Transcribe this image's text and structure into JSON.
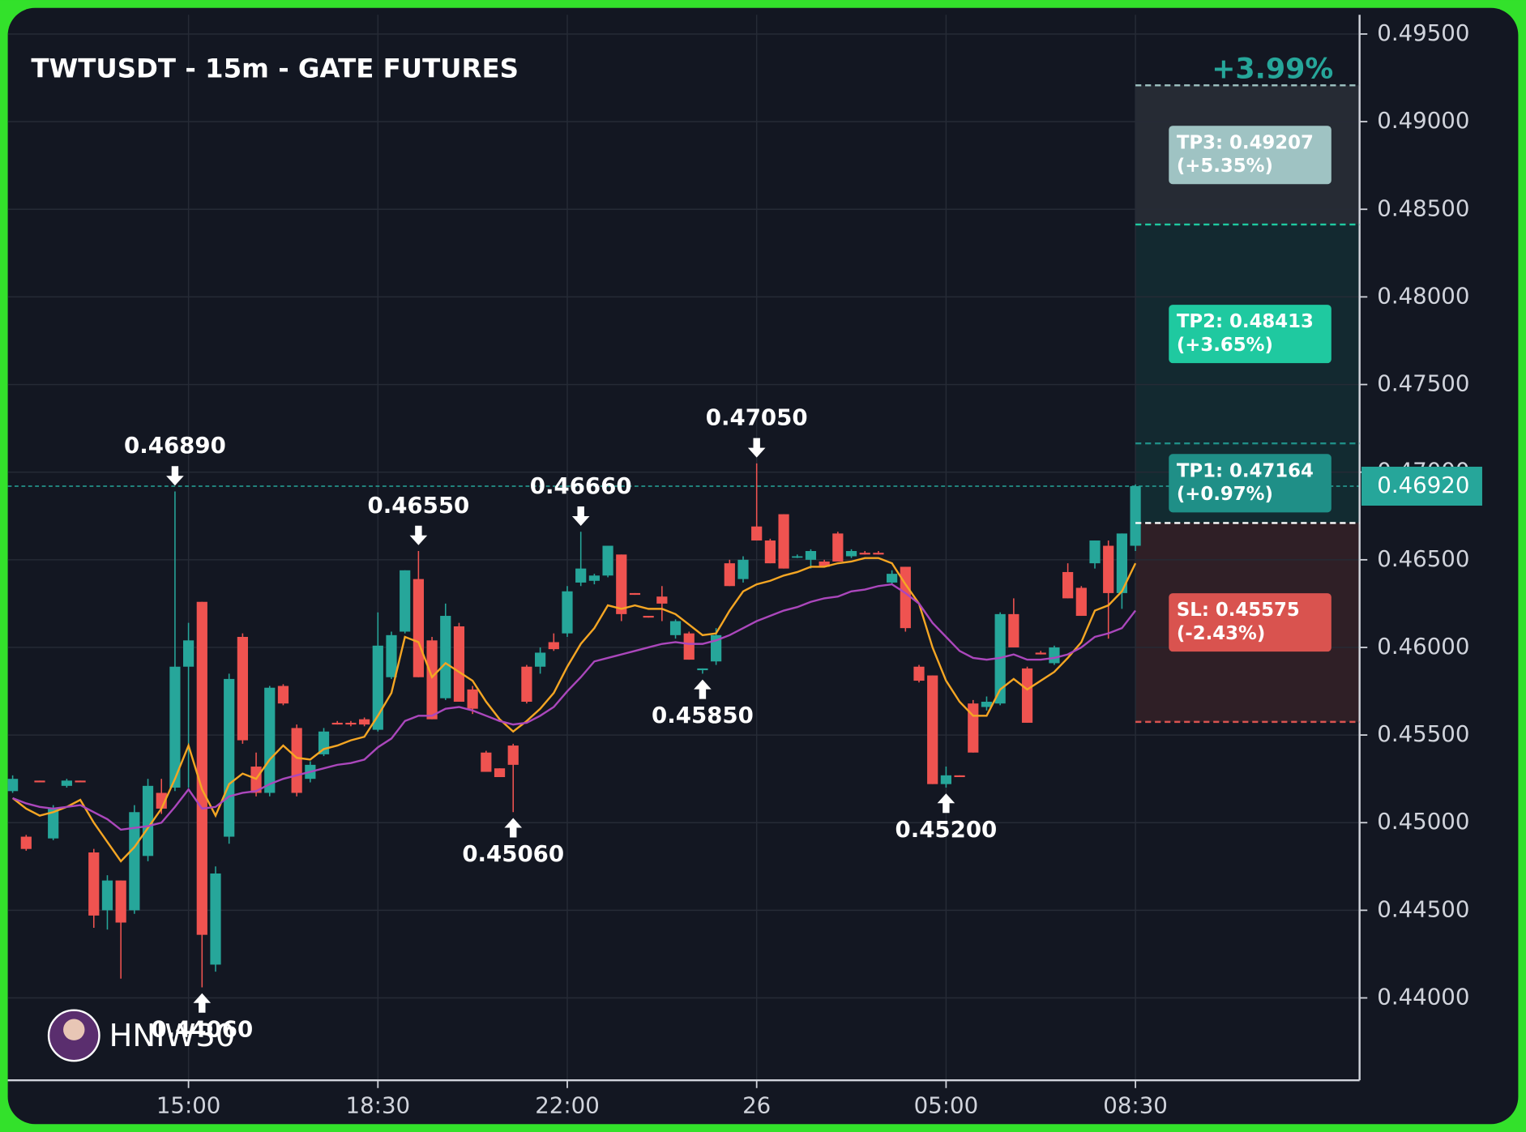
{
  "chart_data": {
    "type": "candlestick",
    "title": "TWTUSDT - 15m - GATE FUTURES",
    "watermark": "HNIW30",
    "up_color": "#26a69a",
    "down_color": "#ef5350",
    "grid": true,
    "ylim": [
      0.4353,
      0.4961
    ],
    "yticks": [
      {
        "value": 0.495,
        "label": "0.49500"
      },
      {
        "value": 0.49,
        "label": "0.49000"
      },
      {
        "value": 0.485,
        "label": "0.48500"
      },
      {
        "value": 0.48,
        "label": "0.48000"
      },
      {
        "value": 0.475,
        "label": "0.47500"
      },
      {
        "value": 0.47,
        "label": "0.47000"
      },
      {
        "value": 0.465,
        "label": "0.46500"
      },
      {
        "value": 0.46,
        "label": "0.46000"
      },
      {
        "value": 0.455,
        "label": "0.45500"
      },
      {
        "value": 0.45,
        "label": "0.45000"
      },
      {
        "value": 0.445,
        "label": "0.44500"
      },
      {
        "value": 0.44,
        "label": "0.44000"
      }
    ],
    "categories": [
      null,
      null,
      null,
      null,
      null,
      null,
      null,
      null,
      null,
      null,
      null,
      null,
      null,
      "15:00",
      null,
      null,
      null,
      null,
      null,
      null,
      null,
      null,
      null,
      null,
      null,
      null,
      null,
      "18:30",
      null,
      null,
      null,
      null,
      null,
      null,
      null,
      null,
      null,
      null,
      null,
      null,
      null,
      "22:00",
      null,
      null,
      null,
      null,
      null,
      null,
      null,
      null,
      null,
      null,
      null,
      null,
      null,
      "26",
      null,
      null,
      null,
      null,
      null,
      null,
      null,
      null,
      null,
      null,
      null,
      null,
      null,
      "05:00",
      null,
      null,
      null,
      null,
      null,
      null,
      null,
      null,
      null,
      null,
      null,
      null,
      null,
      "08:30"
    ],
    "open": [
      0.4518,
      0.4492,
      0.4524,
      0.4491,
      0.4521,
      0.4524,
      0.4483,
      0.445,
      0.4467,
      0.445,
      0.4481,
      0.4517,
      0.452,
      0.4589,
      0.4626,
      0.4419,
      0.4492,
      0.4606,
      0.4532,
      0.4517,
      0.4578,
      0.4554,
      0.4525,
      0.4539,
      0.4557,
      0.4557,
      0.4559,
      0.4553,
      0.4583,
      0.4609,
      0.4639,
      0.4604,
      0.4571,
      0.4612,
      0.4576,
      0.454,
      0.4531,
      0.4544,
      0.4589,
      0.4589,
      0.4603,
      0.4608,
      0.4637,
      0.4638,
      0.4641,
      0.4653,
      0.4631,
      0.4618,
      0.4629,
      0.4607,
      0.4608,
      0.4587,
      0.4592,
      0.4648,
      0.4639,
      0.4669,
      0.4661,
      0.4676,
      0.4652,
      0.465,
      0.4649,
      0.4665,
      0.4652,
      0.4654,
      0.4654,
      0.4637,
      0.4646,
      0.4589,
      0.4584,
      0.4522,
      0.4527,
      0.4568,
      0.4566,
      0.4568,
      0.4619,
      0.4588,
      0.4597,
      0.4591,
      0.4643,
      0.4634,
      0.4648,
      0.4658,
      0.4631,
      0.4658
    ],
    "high": [
      0.4527,
      0.4493,
      0.4524,
      0.451,
      0.4525,
      0.4524,
      0.4485,
      0.447,
      0.4467,
      0.451,
      0.4525,
      0.4525,
      0.4689,
      0.4614,
      0.4626,
      0.4475,
      0.4585,
      0.4608,
      0.454,
      0.4578,
      0.4579,
      0.4556,
      0.4535,
      0.4554,
      0.4558,
      0.4558,
      0.456,
      0.462,
      0.4609,
      0.4644,
      0.4655,
      0.4606,
      0.4625,
      0.4614,
      0.4578,
      0.4541,
      0.4531,
      0.4545,
      0.459,
      0.46,
      0.4608,
      0.4635,
      0.4666,
      0.4642,
      0.4658,
      0.4653,
      0.4631,
      0.4618,
      0.4635,
      0.4616,
      0.4609,
      0.4588,
      0.4611,
      0.465,
      0.4652,
      0.4705,
      0.4662,
      0.4676,
      0.4653,
      0.4656,
      0.465,
      0.4666,
      0.4656,
      0.4655,
      0.4655,
      0.4644,
      0.4646,
      0.459,
      0.4584,
      0.4532,
      0.4527,
      0.457,
      0.4572,
      0.462,
      0.4628,
      0.4589,
      0.4598,
      0.4601,
      0.4648,
      0.4635,
      0.4661,
      0.4661,
      0.4665,
      0.4693
    ],
    "low": [
      0.4517,
      0.4484,
      0.4523,
      0.449,
      0.452,
      0.4523,
      0.444,
      0.4439,
      0.4411,
      0.4448,
      0.4478,
      0.4505,
      0.4518,
      0.452,
      0.4406,
      0.4415,
      0.4488,
      0.4545,
      0.4515,
      0.4515,
      0.4567,
      0.4515,
      0.4523,
      0.4538,
      0.4556,
      0.4555,
      0.4555,
      0.4552,
      0.4582,
      0.4608,
      0.4583,
      0.4559,
      0.457,
      0.4569,
      0.4562,
      0.4529,
      0.4526,
      0.4506,
      0.4568,
      0.4585,
      0.4598,
      0.4606,
      0.4635,
      0.4636,
      0.464,
      0.4615,
      0.463,
      0.4617,
      0.4615,
      0.4605,
      0.4593,
      0.4585,
      0.459,
      0.4635,
      0.4637,
      0.4661,
      0.4648,
      0.4645,
      0.4651,
      0.4645,
      0.4646,
      0.4649,
      0.4651,
      0.4653,
      0.4653,
      0.4636,
      0.4609,
      0.458,
      0.4522,
      0.452,
      0.4526,
      0.454,
      0.4564,
      0.4567,
      0.46,
      0.4557,
      0.4596,
      0.459,
      0.4628,
      0.4618,
      0.4645,
      0.4605,
      0.4622,
      0.4655
    ],
    "close": [
      0.4525,
      0.4485,
      0.4523,
      0.4508,
      0.4524,
      0.4523,
      0.4447,
      0.4467,
      0.4443,
      0.4506,
      0.4521,
      0.4508,
      0.4589,
      0.4604,
      0.4436,
      0.4471,
      0.4582,
      0.4547,
      0.4517,
      0.4577,
      0.4568,
      0.4517,
      0.4533,
      0.4552,
      0.4556,
      0.4556,
      0.4556,
      0.4601,
      0.4607,
      0.4644,
      0.4583,
      0.4559,
      0.4618,
      0.4569,
      0.4565,
      0.4529,
      0.4526,
      0.4533,
      0.4569,
      0.4597,
      0.4599,
      0.4632,
      0.4645,
      0.4641,
      0.4658,
      0.4619,
      0.463,
      0.4617,
      0.4625,
      0.4615,
      0.4593,
      0.4588,
      0.4607,
      0.4635,
      0.465,
      0.4661,
      0.4648,
      0.4645,
      0.4652,
      0.4655,
      0.4646,
      0.4649,
      0.4655,
      0.4653,
      0.4653,
      0.4642,
      0.4611,
      0.4581,
      0.4522,
      0.4527,
      0.4526,
      0.454,
      0.4569,
      0.4619,
      0.46,
      0.4557,
      0.4596,
      0.46,
      0.4628,
      0.4618,
      0.4661,
      0.4631,
      0.4665,
      0.4692
    ],
    "high_labels": [
      null,
      null,
      null,
      null,
      null,
      null,
      null,
      null,
      null,
      null,
      null,
      null,
      "0.46890",
      null,
      null,
      null,
      null,
      null,
      null,
      null,
      null,
      null,
      null,
      null,
      null,
      null,
      null,
      null,
      null,
      null,
      "0.46550",
      null,
      null,
      null,
      null,
      null,
      null,
      null,
      null,
      null,
      null,
      null,
      "0.46660",
      null,
      null,
      null,
      null,
      null,
      null,
      null,
      null,
      null,
      null,
      null,
      null,
      "0.47050",
      null,
      null,
      null,
      null,
      null,
      null,
      null,
      null,
      null,
      null,
      null,
      null,
      null,
      null,
      null,
      null,
      null,
      null,
      null,
      null,
      null,
      null,
      null,
      null,
      null,
      null,
      null,
      null
    ],
    "low_labels": [
      null,
      null,
      null,
      null,
      null,
      null,
      null,
      null,
      null,
      null,
      null,
      null,
      null,
      null,
      "0.44060",
      null,
      null,
      null,
      null,
      null,
      null,
      null,
      null,
      null,
      null,
      null,
      null,
      null,
      null,
      null,
      null,
      null,
      null,
      null,
      null,
      null,
      null,
      "0.45060",
      null,
      null,
      null,
      null,
      null,
      null,
      null,
      null,
      null,
      null,
      null,
      null,
      null,
      "0.45850",
      null,
      null,
      null,
      null,
      null,
      null,
      null,
      null,
      null,
      null,
      null,
      null,
      null,
      null,
      null,
      null,
      null,
      "0.45200",
      null,
      null,
      null,
      null,
      null,
      null,
      null,
      null,
      null,
      null,
      null,
      null,
      null,
      null
    ],
    "lines": [
      {
        "color": "#f5a623",
        "values": [
          0.4514,
          0.4508,
          0.4504,
          0.4506,
          0.4509,
          0.4513,
          0.45,
          0.4489,
          0.4478,
          0.4486,
          0.4497,
          0.4508,
          0.4525,
          0.4544,
          0.4519,
          0.4504,
          0.4522,
          0.4528,
          0.4525,
          0.4536,
          0.4544,
          0.4537,
          0.4536,
          0.4542,
          0.4544,
          0.4547,
          0.4549,
          0.4561,
          0.4574,
          0.4606,
          0.4603,
          0.4583,
          0.4591,
          0.4586,
          0.4581,
          0.4569,
          0.4559,
          0.4552,
          0.4558,
          0.4565,
          0.4574,
          0.4589,
          0.4602,
          0.4611,
          0.4624,
          0.4622,
          0.4624,
          0.4622,
          0.4622,
          0.4619,
          0.4613,
          0.4607,
          0.4608,
          0.4621,
          0.4632,
          0.4636,
          0.4638,
          0.4641,
          0.4643,
          0.4646,
          0.4646,
          0.4648,
          0.4649,
          0.4651,
          0.4651,
          0.4648,
          0.4636,
          0.4625,
          0.46,
          0.4581,
          0.4569,
          0.4561,
          0.4561,
          0.4576,
          0.4582,
          0.4576,
          0.4581,
          0.4586,
          0.4594,
          0.4603,
          0.4621,
          0.4624,
          0.4632,
          0.4648
        ]
      },
      {
        "color": "#ab47bc",
        "values": [
          0.4514,
          0.4511,
          0.4509,
          0.4508,
          0.4509,
          0.451,
          0.4506,
          0.4502,
          0.4496,
          0.4497,
          0.4498,
          0.45,
          0.4509,
          0.4519,
          0.4508,
          0.4509,
          0.4515,
          0.4517,
          0.4518,
          0.4522,
          0.4525,
          0.4527,
          0.4529,
          0.4531,
          0.4533,
          0.4534,
          0.4536,
          0.4543,
          0.4548,
          0.4558,
          0.4561,
          0.4561,
          0.4565,
          0.4566,
          0.4564,
          0.4561,
          0.4558,
          0.4556,
          0.4557,
          0.4561,
          0.4566,
          0.4575,
          0.4583,
          0.4592,
          0.4594,
          0.4596,
          0.4598,
          0.46,
          0.4602,
          0.4603,
          0.4602,
          0.4602,
          0.4604,
          0.4607,
          0.4611,
          0.4615,
          0.4618,
          0.4621,
          0.4623,
          0.4626,
          0.4628,
          0.4629,
          0.4632,
          0.4633,
          0.4635,
          0.4636,
          0.4631,
          0.4625,
          0.4614,
          0.4606,
          0.4598,
          0.4594,
          0.4593,
          0.4594,
          0.4596,
          0.4593,
          0.4593,
          0.4594,
          0.4596,
          0.46,
          0.4606,
          0.4608,
          0.4611,
          0.4621
        ]
      }
    ],
    "last_price": {
      "value": 0.4692,
      "label": "0.46920",
      "color": "#26a69a"
    },
    "position": {
      "label": "+3.99%",
      "entry": 0.4671,
      "entry_color": "#ffffff",
      "levels": [
        {
          "label": "TP3: 0.49207",
          "value": 0.49207,
          "change": "(+5.35%)",
          "color": "#9fc3c3",
          "zone_color": "#262b34"
        },
        {
          "label": "TP2: 0.48413",
          "value": 0.48413,
          "change": "(+3.65%)",
          "color": "#1fc9a0",
          "zone_color": "#132930"
        },
        {
          "label": "TP1: 0.47164",
          "value": 0.47164,
          "change": "(+0.97%)",
          "color": "#1f8f87",
          "zone_color": "#122b31"
        },
        {
          "label": "SL: 0.45575",
          "value": 0.45575,
          "change": "(-2.43%)",
          "color": "#d9534f",
          "zone_color": "#2f1f26"
        }
      ]
    }
  }
}
